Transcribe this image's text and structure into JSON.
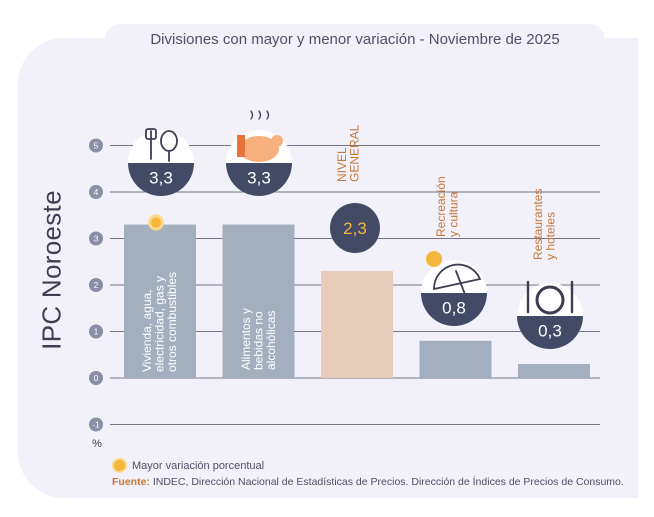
{
  "header": {
    "title": "Divisiones con mayor y menor variación - Noviembre de 2025"
  },
  "side_title": "IPC Noroeste",
  "legend": {
    "highest_label": "Mayor variación porcentual"
  },
  "source": {
    "label": "Fuente:",
    "text": "INDEC, Dirección Nacional de Estadísticas de Precios. Dirección de Índices de Precios de Consumo."
  },
  "colors": {
    "bar": "#a3aebf",
    "general_bar": "#e6cdbb",
    "badge": "#434a66",
    "badge_text": "#ffffff",
    "highlight": "#f5b73b",
    "label_orange": "#c8793a",
    "grid": "#4a4b60"
  },
  "chart_data": {
    "type": "bar",
    "title": "Divisiones con mayor y menor variación - Noviembre de 2025",
    "xlabel": "",
    "ylabel": "%",
    "ylim": [
      -1,
      5
    ],
    "yticks": [
      "-1",
      "0",
      "1",
      "2",
      "3",
      "4",
      "5"
    ],
    "grid": true,
    "categories": [
      "Vivienda, agua, electricidad, gas y otros combustibles",
      "Alimentos y bebidas no alcohólicas",
      "NIVEL GENERAL",
      "Recreación y cultura",
      "Restaurantes y hoteles"
    ],
    "values": [
      3.3,
      3.3,
      2.3,
      0.8,
      0.3
    ],
    "value_labels": [
      "3,3",
      "3,3",
      "2,3",
      "0,8",
      "0,3"
    ],
    "highlight_index": 0,
    "general_index": 2,
    "icons": [
      "lightbulb-icon",
      "chicken-icon",
      "",
      "umbrella-sun-icon",
      "cutlery-icon"
    ]
  }
}
